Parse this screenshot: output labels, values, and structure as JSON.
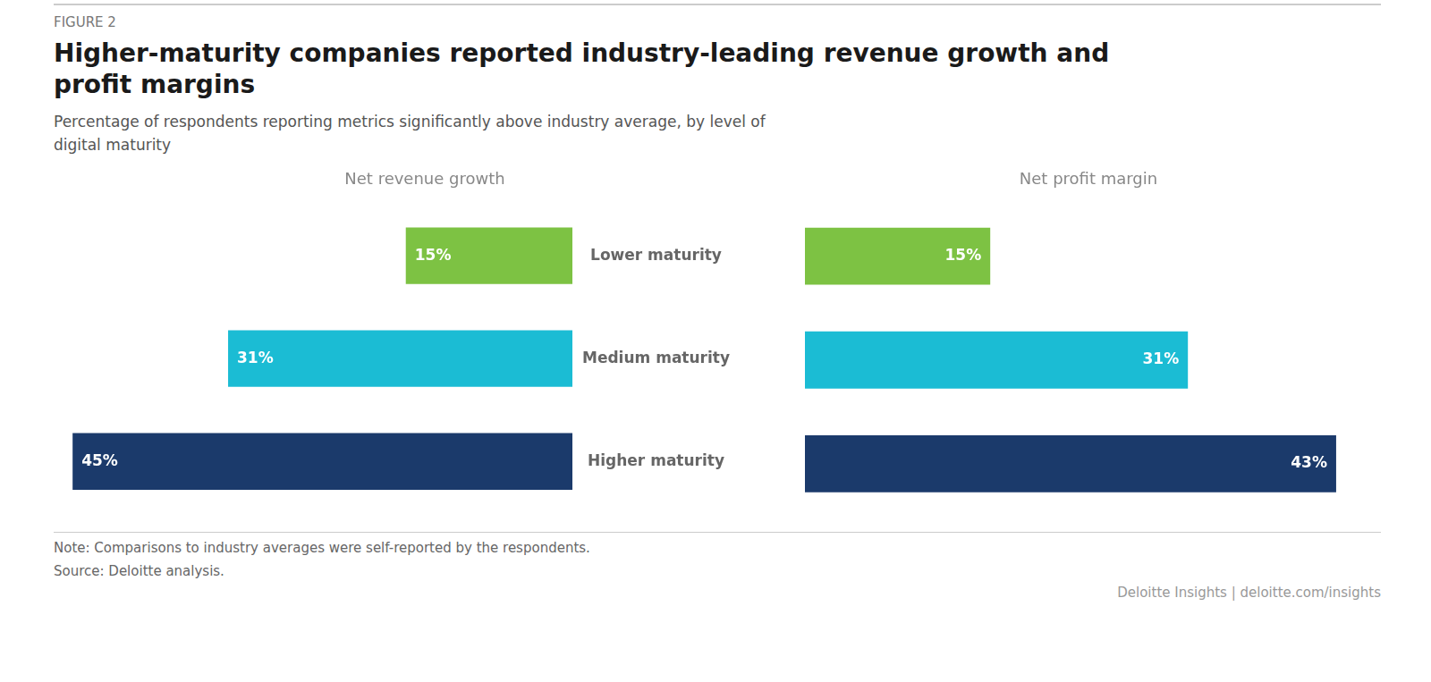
{
  "title": "Higher-maturity companies reported industry-leading revenue growth and\nprofit margins",
  "subtitle": "Percentage of respondents reporting metrics significantly above industry average, by level of\ndigital maturity",
  "annotations": [
    "FIGURE 2",
    "Note: Comparisons to industry averages were self-reported by the respondents.",
    "Source: Deloitte analysis.",
    "Deloitte Insights  |  deloitte.com/insights"
  ],
  "chart_data": [
    {
      "type": "bar",
      "orientation": "horizontal",
      "title": "Net revenue growth",
      "categories": [
        "Lower maturity",
        "Medium maturity",
        "Higher maturity"
      ],
      "values": [
        15,
        31,
        45
      ],
      "value_labels": [
        "15%",
        "31%",
        "45%"
      ],
      "colors": [
        "#7DC243",
        "#1BBCD4",
        "#1B3A6B"
      ],
      "xlim": [
        45.9,
        0
      ],
      "data_labels": true,
      "tick_labels": false,
      "grid": false
    },
    {
      "type": "bar",
      "orientation": "horizontal",
      "title": "Net profit margin",
      "categories": [
        "Lower maturity",
        "Medium maturity",
        "Higher maturity"
      ],
      "values": [
        15,
        31,
        43
      ],
      "value_labels": [
        "15%",
        "31%",
        "43%"
      ],
      "colors": [
        "#7DC243",
        "#1BBCD4",
        "#1B3A6B"
      ],
      "xlim": [
        0,
        45.9
      ],
      "data_labels": true,
      "tick_labels": false,
      "grid": false
    }
  ]
}
